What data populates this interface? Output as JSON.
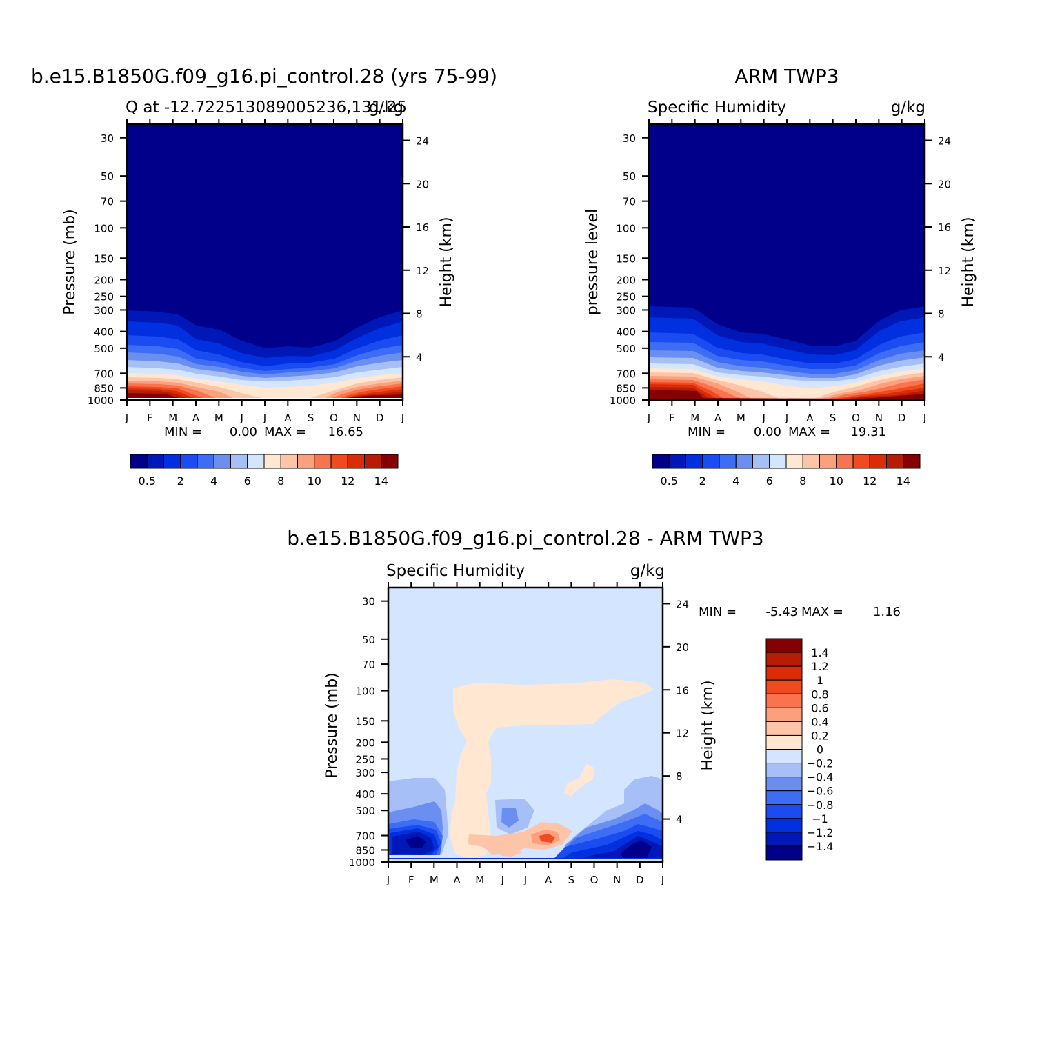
{
  "chart_data": [
    {
      "type": "contour",
      "title": "b.e15.B1850G.f09_g16.pi_control.28 (yrs 75-99)",
      "subtitle_left": "Q at -12.722513089005236,131.25",
      "subtitle_right": "g/kg",
      "ylabel": "Pressure (mb)",
      "ylabel_right": "Height (km)",
      "x_ticks": [
        "J",
        "F",
        "M",
        "A",
        "M",
        "J",
        "J",
        "A",
        "S",
        "O",
        "N",
        "D",
        "J"
      ],
      "y_ticks": [
        30,
        50,
        70,
        100,
        150,
        200,
        250,
        300,
        400,
        500,
        700,
        850,
        1000
      ],
      "y_ticks_right": [
        24,
        20,
        16,
        12,
        8,
        4
      ],
      "ylim": [
        1000,
        25
      ],
      "scale": "log-pressure",
      "stats": {
        "min_label": "MIN =",
        "min": "0.00",
        "max_label": "MAX =",
        "max": "16.65"
      },
      "colorbar": {
        "orientation": "horizontal",
        "levels": [
          0.5,
          1,
          2,
          3,
          4,
          5,
          6,
          7,
          8,
          9,
          10,
          11,
          12,
          13,
          14
        ],
        "labels": [
          "0.5",
          "2",
          "4",
          "6",
          "8",
          "10",
          "12",
          "14"
        ],
        "colors": [
          "#00008b",
          "#0018b8",
          "#0030e0",
          "#1a4cf2",
          "#3d6cf5",
          "#6a8ff0",
          "#a6bff7",
          "#d4e6ff",
          "#ffe7d2",
          "#fdc4a8",
          "#fba07c",
          "#f9744e",
          "#f04a20",
          "#db2c08",
          "#b71c05",
          "#850000"
        ]
      }
    },
    {
      "type": "contour",
      "title": "ARM TWP3",
      "subtitle_left": "Specific Humidity",
      "subtitle_right": "g/kg",
      "ylabel": "pressure level",
      "ylabel_right": "Height (km)",
      "x_ticks": [
        "J",
        "F",
        "M",
        "A",
        "M",
        "J",
        "J",
        "A",
        "S",
        "O",
        "N",
        "D",
        "J"
      ],
      "y_ticks": [
        30,
        50,
        70,
        100,
        150,
        200,
        250,
        300,
        400,
        500,
        700,
        850,
        1000
      ],
      "y_ticks_right": [
        24,
        20,
        16,
        12,
        8,
        4
      ],
      "ylim": [
        1000,
        25
      ],
      "scale": "log-pressure",
      "stats": {
        "min_label": "MIN =",
        "min": "0.00",
        "max_label": "MAX =",
        "max": "19.31"
      },
      "colorbar": {
        "orientation": "horizontal",
        "levels": [
          0.5,
          1,
          2,
          3,
          4,
          5,
          6,
          7,
          8,
          9,
          10,
          11,
          12,
          13,
          14
        ],
        "labels": [
          "0.5",
          "2",
          "4",
          "6",
          "8",
          "10",
          "12",
          "14"
        ],
        "colors": [
          "#00008b",
          "#0018b8",
          "#0030e0",
          "#1a4cf2",
          "#3d6cf5",
          "#6a8ff0",
          "#a6bff7",
          "#d4e6ff",
          "#ffe7d2",
          "#fdc4a8",
          "#fba07c",
          "#f9744e",
          "#f04a20",
          "#db2c08",
          "#b71c05",
          "#850000"
        ]
      }
    },
    {
      "type": "contour",
      "title": "b.e15.B1850G.f09_g16.pi_control.28 - ARM TWP3",
      "subtitle_left": "Specific Humidity",
      "subtitle_right": "g/kg",
      "ylabel": "Pressure (mb)",
      "ylabel_right": "Height (km)",
      "x_ticks": [
        "J",
        "F",
        "M",
        "A",
        "M",
        "J",
        "J",
        "A",
        "S",
        "O",
        "N",
        "D",
        "J"
      ],
      "y_ticks": [
        30,
        50,
        70,
        100,
        150,
        200,
        250,
        300,
        400,
        500,
        700,
        850,
        1000
      ],
      "y_ticks_right": [
        24,
        20,
        16,
        12,
        8,
        4
      ],
      "ylim": [
        1000,
        25
      ],
      "scale": "log-pressure",
      "stats": {
        "min_label": "MIN =",
        "min": "-5.43",
        "max_label": "MAX =",
        "max": "1.16"
      },
      "colorbar": {
        "orientation": "vertical",
        "levels": [
          1.4,
          1.2,
          1,
          0.8,
          0.6,
          0.4,
          0.2,
          0,
          -0.2,
          -0.4,
          -0.6,
          -0.8,
          -1,
          -1.2,
          -1.4
        ],
        "labels": [
          "1.4",
          "1.2",
          "1",
          "0.8",
          "0.6",
          "0.4",
          "0.2",
          "0",
          "−0.2",
          "−0.4",
          "−0.6",
          "−0.8",
          "−1",
          "−1.2",
          "−1.4"
        ],
        "colors": [
          "#850000",
          "#b71c05",
          "#db2c08",
          "#f04a20",
          "#f9744e",
          "#fba07c",
          "#fdc4a8",
          "#ffe7d2",
          "#d4e6ff",
          "#a6bff7",
          "#6a8ff0",
          "#3d6cf5",
          "#1a4cf2",
          "#0030e0",
          "#0018b8",
          "#00008b"
        ]
      }
    }
  ]
}
